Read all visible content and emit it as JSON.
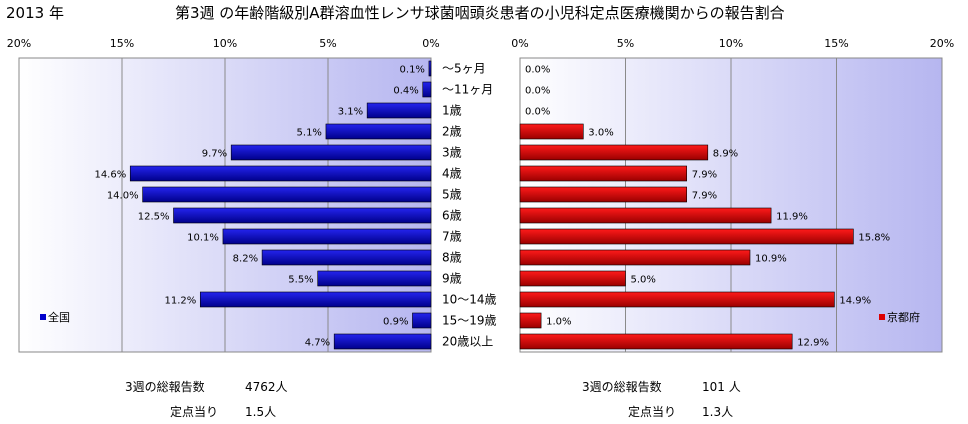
{
  "header": {
    "year": "2013 年",
    "title": "第3週 の年齢階級別A群溶血性レンサ球菌咽頭炎患者の小児科定点医療機関からの報告割合"
  },
  "categories": [
    "～5ヶ月",
    "～11ヶ月",
    "1歳",
    "2歳",
    "3歳",
    "4歳",
    "5歳",
    "6歳",
    "7歳",
    "8歳",
    "9歳",
    "10～14歳",
    "15～19歳",
    "20歳以上"
  ],
  "chart_data": [
    {
      "type": "bar",
      "orientation": "horizontal",
      "direction": "reversed",
      "series": [
        {
          "name": "全国",
          "values": [
            0.1,
            0.4,
            3.1,
            5.1,
            9.7,
            14.6,
            14.0,
            12.5,
            10.1,
            8.2,
            5.5,
            11.2,
            0.9,
            4.7
          ]
        }
      ],
      "value_labels": [
        "0.1%",
        "0.4%",
        "3.1%",
        "5.1%",
        "9.7%",
        "14.6%",
        "14.0%",
        "12.5%",
        "10.1%",
        "8.2%",
        "5.5%",
        "11.2%",
        "0.9%",
        "4.7%"
      ],
      "xlim": [
        0,
        20
      ],
      "ticks": [
        "20%",
        "15%",
        "10%",
        "5%",
        "0%"
      ],
      "color": "#0000cc",
      "legend": "left"
    },
    {
      "type": "bar",
      "orientation": "horizontal",
      "series": [
        {
          "name": "京都府",
          "values": [
            0.0,
            0.0,
            0.0,
            3.0,
            8.9,
            7.9,
            7.9,
            11.9,
            15.8,
            10.9,
            5.0,
            14.9,
            1.0,
            12.9
          ]
        }
      ],
      "value_labels": [
        "0.0%",
        "0.0%",
        "0.0%",
        "3.0%",
        "8.9%",
        "7.9%",
        "7.9%",
        "11.9%",
        "15.8%",
        "10.9%",
        "5.0%",
        "14.9%",
        "1.0%",
        "12.9%"
      ],
      "xlim": [
        0,
        20
      ],
      "ticks": [
        "0%",
        "5%",
        "10%",
        "15%",
        "20%"
      ],
      "color": "#dd0000",
      "legend": "right"
    }
  ],
  "footer": {
    "left": {
      "total_label": "3週の総報告数",
      "total_value": "4762人",
      "per_label": "定点当り",
      "per_value": "1.5人"
    },
    "right": {
      "total_label": "3週の総報告数",
      "total_value": "101 人",
      "per_label": "定点当り",
      "per_value": "1.3人"
    }
  }
}
